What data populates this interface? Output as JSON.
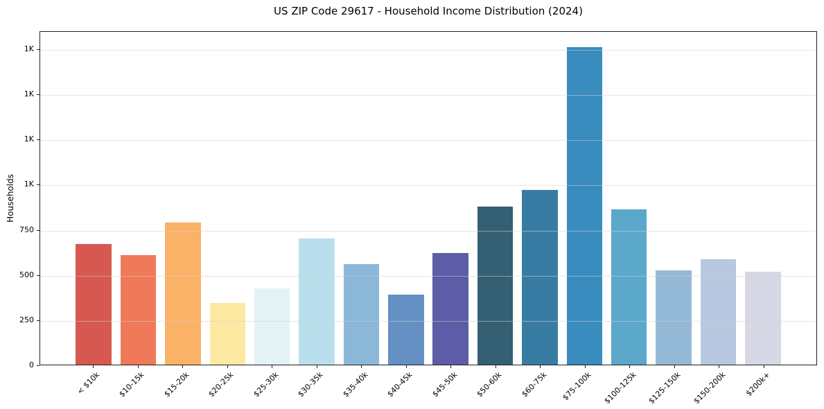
{
  "title": "US ZIP Code 29617 - Household Income Distribution (2024)",
  "chart_data": {
    "type": "bar",
    "title": "US ZIP Code 29617 - Household Income Distribution (2024)",
    "xlabel": "",
    "ylabel": "Households",
    "categories": [
      "< $10k",
      "$10-15k",
      "$15-20k",
      "$20-25k",
      "$25-30k",
      "$30-35k",
      "$35-40k",
      "$40-45k",
      "$45-50k",
      "$50-60k",
      "$60-75k",
      "$75-100k",
      "$100-125k",
      "$125-150k",
      "$150-200k",
      "$200k+"
    ],
    "values": [
      670,
      610,
      790,
      345,
      425,
      700,
      560,
      390,
      620,
      880,
      970,
      1765,
      865,
      525,
      585,
      515
    ],
    "bar_colors": [
      "#d65850",
      "#f0795a",
      "#fab267",
      "#fde9a2",
      "#e2f2f5",
      "#badfec",
      "#8bb8d8",
      "#6490c4",
      "#5c5da6",
      "#355f73",
      "#387ca3",
      "#398cbe",
      "#5ba8cb",
      "#94b9d7",
      "#b7c8e0",
      "#d6d8e5"
    ],
    "ylim": [
      0,
      1850
    ],
    "yticks": [
      {
        "value": 0,
        "label": "0"
      },
      {
        "value": 250,
        "label": "250"
      },
      {
        "value": 500,
        "label": "500"
      },
      {
        "value": 750,
        "label": "750"
      },
      {
        "value": 1000,
        "label": "1K"
      },
      {
        "value": 1250,
        "label": "1K"
      },
      {
        "value": 1500,
        "label": "1K"
      },
      {
        "value": 1750,
        "label": "1K"
      }
    ],
    "grid": "horizontal-only, light gray, drawn over bars",
    "legend_position": "none"
  },
  "colors": {
    "background": "#ffffff",
    "spine": "#1f1f1f",
    "grid": "#d2d2d2",
    "text": "#000000"
  }
}
